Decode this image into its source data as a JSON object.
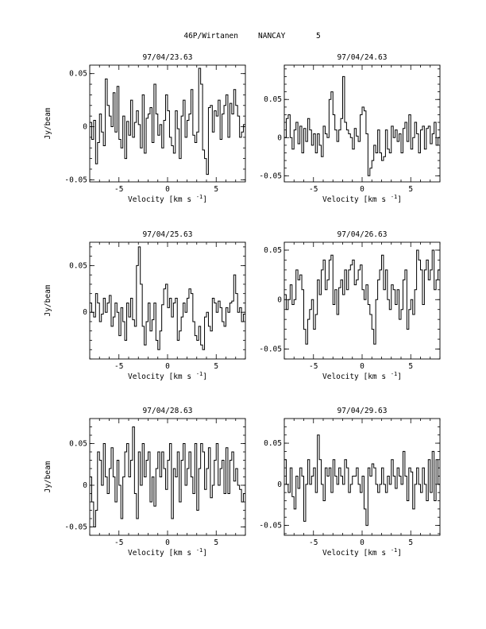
{
  "figure": {
    "title_object": "46P/Wirtanen",
    "title_site": "NANCAY",
    "title_index": "5"
  },
  "chart_data": [
    {
      "type": "line",
      "step": true,
      "title": "97/04/23.63",
      "xlabel": "Velocity [km s",
      "xlabel_sup": "-1",
      "xlabel_end": "]",
      "ylabel": "Jy/beam",
      "xlim": [
        -8,
        8
      ],
      "ylim": [
        -0.052,
        0.058
      ],
      "xticks": [
        -5,
        0,
        5
      ],
      "yticks": [
        0.05,
        0,
        -0.05
      ],
      "ytick_labels": [
        "0.05",
        "0",
        "-0.05"
      ],
      "x_step": 0.2,
      "y": [
        0.004,
        -0.012,
        0.006,
        -0.035,
        -0.015,
        0.012,
        -0.005,
        -0.018,
        0.045,
        0.02,
        0.01,
        0.0,
        0.032,
        -0.005,
        0.038,
        -0.012,
        -0.02,
        0.01,
        -0.03,
        0.005,
        -0.008,
        0.025,
        -0.01,
        0.004,
        0.015,
        0.002,
        -0.02,
        0.03,
        -0.025,
        0.008,
        0.012,
        0.018,
        -0.015,
        0.04,
        0.012,
        -0.008,
        0.002,
        -0.02,
        0.006,
        0.03,
        0.015,
        -0.01,
        -0.018,
        -0.025,
        0.015,
        -0.002,
        -0.03,
        0.01,
        0.025,
        -0.01,
        0.006,
        0.012,
        0.035,
        -0.008,
        -0.015,
        -0.005,
        0.055,
        0.04,
        -0.022,
        -0.03,
        -0.045,
        0.018,
        0.02,
        -0.005,
        0.015,
        0.01,
        0.025,
        -0.012,
        0.012,
        0.02,
        0.03,
        -0.01,
        0.022,
        0.012,
        0.035,
        0.02,
        0.01,
        -0.01,
        -0.005,
        0.002
      ]
    },
    {
      "type": "line",
      "step": true,
      "title": "97/04/24.63",
      "xlabel": "Velocity [km s",
      "xlabel_sup": "-1",
      "xlabel_end": "]",
      "ylabel": "",
      "xlim": [
        -8,
        8
      ],
      "ylim": [
        -0.058,
        0.095
      ],
      "xticks": [
        -5,
        0,
        5
      ],
      "yticks": [
        0.05,
        0,
        -0.05
      ],
      "ytick_labels": [
        "0.05",
        "0",
        "-0.05"
      ],
      "x_step": 0.2,
      "y": [
        0.0,
        0.025,
        0.03,
        0.0,
        -0.015,
        0.01,
        0.02,
        -0.008,
        0.015,
        -0.02,
        0.012,
        -0.005,
        0.025,
        0.01,
        -0.01,
        0.005,
        -0.02,
        0.005,
        -0.01,
        -0.025,
        0.015,
        0.005,
        0.0,
        0.05,
        0.06,
        0.03,
        0.01,
        -0.005,
        0.01,
        0.025,
        0.08,
        0.02,
        0.01,
        0.005,
        0.0,
        -0.015,
        0.012,
        0.002,
        -0.005,
        0.03,
        0.04,
        0.035,
        0.005,
        -0.05,
        -0.04,
        -0.03,
        -0.01,
        -0.02,
        0.01,
        -0.02,
        -0.03,
        -0.025,
        0.01,
        -0.015,
        -0.02,
        0.015,
        0.0,
        0.01,
        -0.005,
        0.005,
        -0.02,
        0.012,
        0.02,
        -0.005,
        0.03,
        -0.015,
        0.0,
        0.02,
        0.005,
        -0.02,
        0.01,
        0.015,
        -0.015,
        0.012,
        0.015,
        -0.008,
        0.005,
        0.02,
        -0.01,
        0.0
      ]
    },
    {
      "type": "line",
      "step": true,
      "title": "97/04/25.63",
      "xlabel": "Velocity [km s",
      "xlabel_sup": "-1",
      "xlabel_end": "]",
      "ylabel": "Jy/beam",
      "xlim": [
        -8,
        8
      ],
      "ylim": [
        -0.05,
        0.075
      ],
      "xticks": [
        -5,
        0,
        5
      ],
      "yticks": [
        0.05,
        0
      ],
      "ytick_labels": [
        "0.05",
        "0"
      ],
      "x_step": 0.2,
      "y": [
        0.01,
        0.0,
        -0.005,
        0.02,
        0.01,
        -0.01,
        -0.002,
        0.015,
        0.0,
        0.01,
        0.018,
        -0.015,
        -0.005,
        0.01,
        0.0,
        -0.025,
        0.005,
        -0.01,
        -0.03,
        0.01,
        -0.005,
        0.015,
        -0.008,
        -0.015,
        0.05,
        0.07,
        0.03,
        -0.015,
        -0.035,
        -0.01,
        0.01,
        -0.02,
        -0.008,
        0.01,
        -0.03,
        -0.04,
        -0.02,
        0.008,
        0.025,
        0.03,
        0.005,
        0.015,
        -0.005,
        0.01,
        0.015,
        -0.03,
        -0.02,
        -0.005,
        0.01,
        0.0,
        0.015,
        0.025,
        0.02,
        -0.01,
        -0.025,
        -0.03,
        -0.015,
        -0.035,
        -0.04,
        -0.005,
        0.0,
        -0.015,
        -0.02,
        0.015,
        0.01,
        0.0,
        0.012,
        0.005,
        -0.01,
        -0.015,
        0.005,
        0.0,
        0.01,
        0.012,
        0.04,
        0.02,
        0.0,
        0.005,
        -0.01,
        -0.002
      ]
    },
    {
      "type": "line",
      "step": true,
      "title": "97/04/26.63",
      "xlabel": "Velocity [km s",
      "xlabel_sup": "-1",
      "xlabel_end": "]",
      "ylabel": "",
      "xlim": [
        -8,
        8
      ],
      "ylim": [
        -0.06,
        0.058
      ],
      "xticks": [
        -5,
        0,
        5
      ],
      "yticks": [
        0.05,
        0,
        -0.05
      ],
      "ytick_labels": [
        "0.05",
        "0",
        "-0.05"
      ],
      "x_step": 0.2,
      "y": [
        0.005,
        -0.01,
        0.0,
        0.015,
        -0.005,
        0.0,
        0.03,
        0.02,
        0.025,
        0.01,
        -0.03,
        -0.045,
        -0.02,
        -0.01,
        0.0,
        -0.03,
        -0.015,
        0.02,
        0.005,
        0.03,
        0.04,
        0.01,
        0.02,
        0.04,
        0.045,
        -0.005,
        0.01,
        -0.015,
        0.012,
        0.02,
        0.005,
        0.03,
        0.01,
        0.03,
        0.035,
        0.04,
        0.015,
        0.02,
        0.03,
        0.035,
        0.01,
        0.0,
        0.015,
        -0.005,
        -0.015,
        -0.03,
        -0.045,
        0.0,
        0.02,
        0.03,
        0.045,
        0.01,
        0.03,
        0.0,
        -0.01,
        0.015,
        0.01,
        -0.005,
        0.01,
        -0.02,
        -0.01,
        0.02,
        0.03,
        -0.03,
        -0.01,
        0.0,
        -0.015,
        0.01,
        0.05,
        0.04,
        0.03,
        -0.005,
        0.03,
        0.04,
        0.02,
        0.03,
        0.05,
        0.01,
        0.02,
        0.03
      ]
    },
    {
      "type": "line",
      "step": true,
      "title": "97/04/28.63",
      "xlabel": "Velocity [km s",
      "xlabel_sup": "-1",
      "xlabel_end": "]",
      "ylabel": "Jy/beam",
      "xlim": [
        -8,
        8
      ],
      "ylim": [
        -0.06,
        0.08
      ],
      "xticks": [
        -5,
        0,
        5
      ],
      "yticks": [
        0.05,
        0,
        -0.05
      ],
      "ytick_labels": [
        "0.05",
        "0",
        "-0.05"
      ],
      "x_step": 0.2,
      "y": [
        0.01,
        -0.02,
        -0.05,
        -0.03,
        0.04,
        0.03,
        0.0,
        0.05,
        0.01,
        -0.01,
        0.02,
        0.045,
        0.01,
        -0.02,
        0.03,
        0.0,
        -0.04,
        0.01,
        0.04,
        0.05,
        0.01,
        0.03,
        0.07,
        -0.01,
        -0.04,
        0.04,
        0.0,
        0.05,
        0.01,
        0.03,
        0.04,
        -0.02,
        0.01,
        -0.025,
        0.02,
        0.04,
        0.01,
        0.04,
        0.02,
        -0.005,
        0.03,
        0.05,
        -0.04,
        0.02,
        0.01,
        0.04,
        -0.02,
        0.03,
        0.05,
        0.0,
        0.02,
        0.04,
        0.01,
        -0.01,
        0.05,
        -0.03,
        0.02,
        0.05,
        0.04,
        -0.005,
        0.02,
        0.045,
        -0.015,
        0.0,
        0.03,
        0.05,
        0.0,
        0.02,
        0.03,
        -0.01,
        0.045,
        -0.01,
        0.03,
        0.04,
        0.005,
        0.02,
        0.0,
        -0.005,
        -0.02,
        -0.01
      ]
    },
    {
      "type": "line",
      "step": true,
      "title": "97/04/29.63",
      "xlabel": "Velocity [km s",
      "xlabel_sup": "-1",
      "xlabel_end": "]",
      "ylabel": "",
      "xlim": [
        -8,
        8
      ],
      "ylim": [
        -0.062,
        0.08
      ],
      "xticks": [
        -5,
        0,
        5
      ],
      "yticks": [
        0.05,
        0,
        -0.05
      ],
      "ytick_labels": [
        "0.05",
        "0",
        "-0.05"
      ],
      "x_step": 0.2,
      "y": [
        0.03,
        0.0,
        -0.01,
        0.02,
        -0.015,
        -0.03,
        0.01,
        -0.005,
        0.02,
        0.01,
        -0.045,
        0.0,
        0.03,
        0.0,
        0.01,
        0.02,
        -0.01,
        0.06,
        0.03,
        0.0,
        -0.02,
        0.02,
        0.01,
        0.02,
        -0.01,
        0.03,
        0.01,
        0.0,
        0.02,
        0.01,
        0.0,
        0.03,
        0.02,
        -0.01,
        0.0,
        0.01,
        0.01,
        0.02,
        0.0,
        -0.01,
        0.01,
        -0.03,
        -0.05,
        0.02,
        0.01,
        0.025,
        0.02,
        0.0,
        -0.01,
        0.0,
        0.02,
        0.0,
        -0.01,
        0.01,
        0.0,
        0.03,
        0.01,
        -0.005,
        0.02,
        0.01,
        0.0,
        0.04,
        0.01,
        -0.02,
        0.02,
        0.015,
        -0.03,
        0.0,
        0.02,
        0.0,
        -0.01,
        0.02,
        0.0,
        -0.02,
        0.03,
        -0.01,
        0.04,
        -0.02,
        0.03,
        0.0
      ]
    }
  ]
}
